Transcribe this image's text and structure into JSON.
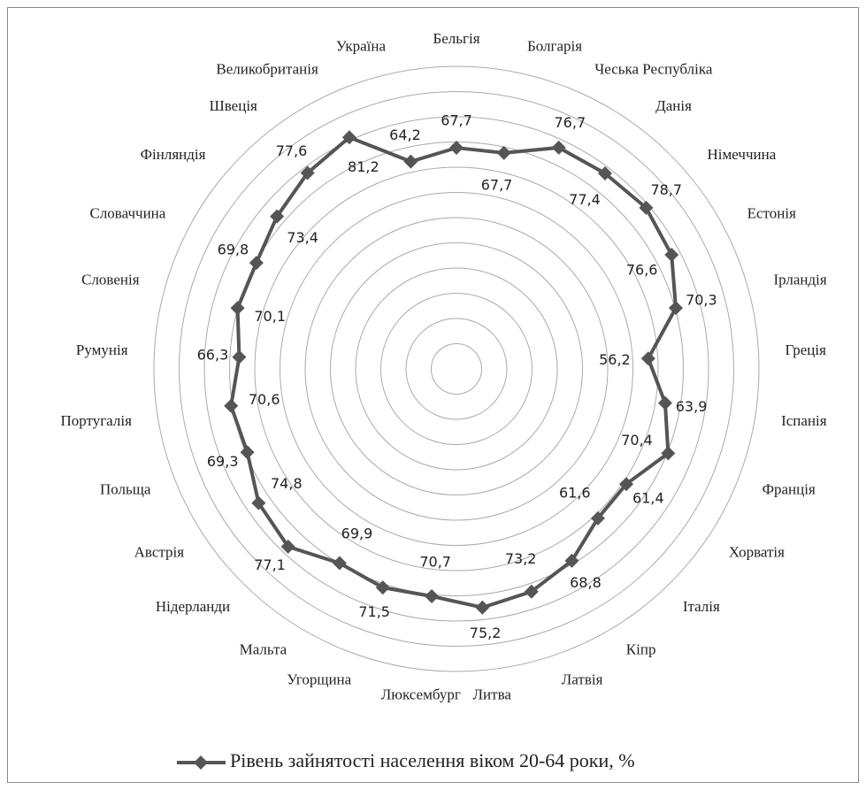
{
  "chart_data": {
    "type": "radar",
    "categories": [
      "Бельгія",
      "Болгарія",
      "Чеська Республіка",
      "Данія",
      "Німеччина",
      "Естонія",
      "Ірландія",
      "Греція",
      "Іспанія",
      "Франція",
      "Хорватія",
      "Італія",
      "Кіпр",
      "Латвія",
      "Литва",
      "Люксембург",
      "Угорщина",
      "Мальта",
      "Нідерланди",
      "Австрія",
      "Польща",
      "Португалія",
      "Румунія",
      "Словенія",
      "Словаччина",
      "Фінляндія",
      "Швеція",
      "Великобританія",
      "Україна"
    ],
    "series": [
      {
        "name": "Рівень зайнятості населення віком 20-64 роки, %",
        "color": "#555555",
        "values": [
          67.7,
          67.7,
          76.7,
          77.4,
          78.7,
          76.6,
          70.3,
          56.2,
          63.9,
          70.4,
          61.4,
          61.6,
          68.8,
          73.2,
          75.2,
          70.7,
          71.5,
          69.9,
          77.1,
          74.8,
          69.3,
          70.6,
          66.3,
          70.1,
          69.8,
          73.4,
          77.6,
          81.2,
          64.2
        ],
        "value_labels": [
          "67,7",
          "67,7",
          "76,7",
          "77,4",
          "78,7",
          "76,6",
          "70,3",
          "56,2",
          "63,9",
          "70,4",
          "61,4",
          "61,6",
          "68,8",
          "73,2",
          "75,2",
          "70,7",
          "71,5",
          "69,9",
          "77,1",
          "74,8",
          "69,3",
          "70,6",
          "66,3",
          "70,1",
          "69,8",
          "73,4",
          "77,6",
          "81,2",
          "64,2"
        ]
      }
    ],
    "ylim": [
      -20,
      100
    ],
    "yticks": [
      -20,
      -10,
      0,
      10,
      20,
      30,
      40,
      50,
      60,
      70,
      80,
      90,
      100
    ],
    "grid": true,
    "legend": "bottom"
  }
}
